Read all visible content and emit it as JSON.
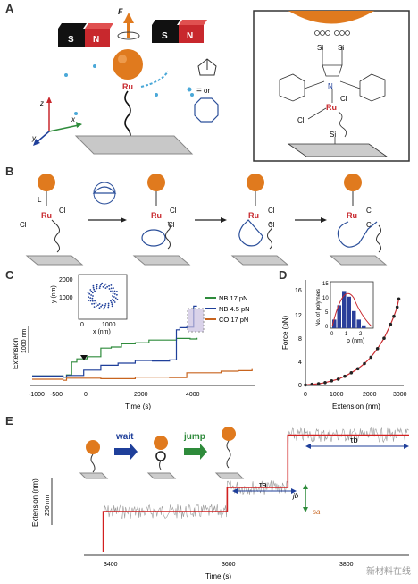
{
  "panels": {
    "A": {
      "letter": "A",
      "force_label": "F",
      "magnet_left": [
        "S",
        "N"
      ],
      "magnet_right": [
        "S",
        "N"
      ],
      "ru_label": "Ru",
      "equals": "=",
      "or": "or",
      "axes": {
        "z": "z",
        "x": "x",
        "y": "y"
      },
      "inset": {
        "ru": "Ru",
        "cl1": "Cl",
        "cl2": "Cl",
        "si1": "Si",
        "si2": "Si",
        "si3": "Si",
        "n": "N"
      }
    },
    "B": {
      "letter": "B",
      "atoms": {
        "ru": "Ru",
        "cl": "Cl",
        "l": "L"
      }
    },
    "C": {
      "letter": "C",
      "ylabel": "Extension",
      "scalebar_label": "1000 nm",
      "xlabel": "Time (s)",
      "xticks": [
        "-1000",
        "-500",
        "0",
        "2000",
        "4000"
      ],
      "legend": [
        {
          "label": "NB 17 pN",
          "color": "#2e8b3b"
        },
        {
          "label": "NB 4.5 pN",
          "color": "#1f3f9a"
        },
        {
          "label": "CO 17 pN",
          "color": "#c8641e"
        }
      ],
      "inset": {
        "ylabel": "y (nm)",
        "xlabel": "x (nm)",
        "yticks": [
          "2000",
          "1000"
        ],
        "xticks": [
          "0",
          "1000"
        ]
      }
    },
    "D": {
      "letter": "D",
      "ylabel": "Force (pN)",
      "xlabel": "Extension (nm)",
      "yticks": [
        "0",
        "4",
        "8",
        "12",
        "16"
      ],
      "xticks": [
        "0",
        "1000",
        "2000",
        "3000"
      ],
      "inset": {
        "ylabel": "No. of polymers",
        "xlabel": "p (nm)",
        "yticks": [
          "0",
          "5",
          "10",
          "15"
        ],
        "xticks": [
          "0",
          "1",
          "2"
        ]
      }
    },
    "E": {
      "letter": "E",
      "wait_label": "wait",
      "jump_label": "jump",
      "ylabel": "Extension (nm)",
      "scalebar_label": "200 nm",
      "xlabel": "Time (s)",
      "xticks": [
        "3400",
        "3600",
        "3800"
      ],
      "tau_a": "τa",
      "tau_b": "τb",
      "j_label": "jb",
      "s_label": "sa"
    }
  },
  "watermark": "新材料在线",
  "chart_data": [
    {
      "type": "line",
      "title": "",
      "xlabel": "Time (s)",
      "ylabel": "Extension",
      "xlim": [
        -1000,
        5500
      ],
      "series": [
        {
          "name": "NB 17 pN",
          "color": "#2e8b3b",
          "x": [
            -1000,
            -100,
            0,
            150,
            300,
            600,
            1000,
            1300,
            1600,
            2000,
            2400,
            2800,
            3200,
            3600,
            3800
          ],
          "y": [
            0,
            0,
            20,
            280,
            320,
            380,
            520,
            560,
            600,
            640,
            670,
            690,
            700,
            710,
            710
          ]
        },
        {
          "name": "NB 4.5 pN",
          "color": "#1f3f9a",
          "x": [
            -1000,
            -100,
            0,
            500,
            1000,
            1500,
            2000,
            2500,
            3000,
            3200,
            3300,
            3500,
            3700,
            3800
          ],
          "y": [
            0,
            0,
            10,
            130,
            200,
            260,
            290,
            300,
            300,
            880,
            900,
            930,
            1300,
            1320
          ]
        },
        {
          "name": "CO 17 pN",
          "color": "#c8641e",
          "x": [
            -1000,
            -100,
            0,
            1000,
            2000,
            3000,
            3500,
            4000,
            4500,
            5000,
            5400
          ],
          "y": [
            -60,
            -60,
            -40,
            -30,
            -20,
            -10,
            60,
            80,
            90,
            120,
            130
          ]
        }
      ]
    },
    {
      "type": "scatter",
      "title": "",
      "xlabel": "Extension (nm)",
      "ylabel": "Force (pN)",
      "xlim": [
        0,
        3000
      ],
      "ylim": [
        0,
        18
      ],
      "series": [
        {
          "name": "",
          "x": [
            0,
            200,
            400,
            600,
            800,
            1000,
            1200,
            1400,
            1600,
            1800,
            2000,
            2200,
            2400,
            2600,
            2700,
            2800,
            2850
          ],
          "y": [
            0.1,
            0.2,
            0.3,
            0.5,
            0.8,
            1.1,
            1.6,
            2.2,
            2.9,
            3.8,
            4.9,
            6.4,
            8.2,
            10.6,
            12.0,
            13.6,
            15.0
          ]
        }
      ]
    },
    {
      "type": "line",
      "title": "",
      "xlabel": "Time (s)",
      "ylabel": "Extension (nm)",
      "xlim": [
        3330,
        3920
      ],
      "series": [
        {
          "name": "",
          "color": "#d22020",
          "x": [
            3365,
            3365,
            3590,
            3590,
            3700,
            3700,
            3920
          ],
          "y": [
            0,
            100,
            100,
            160,
            160,
            290,
            290
          ]
        }
      ]
    }
  ]
}
